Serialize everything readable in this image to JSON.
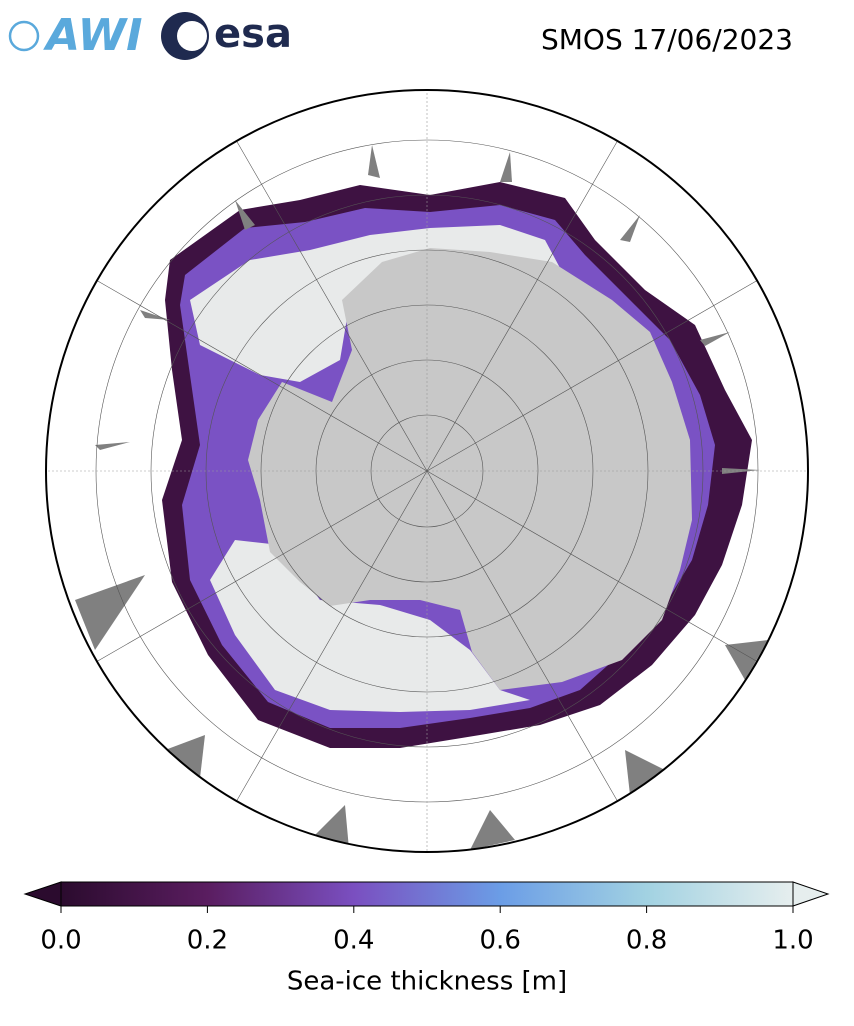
{
  "title": "SMOS 17/06/2023",
  "logos": {
    "awi": "AWI",
    "esa": "esa"
  },
  "colorbar": {
    "label": "Sea-ice thickness [m]",
    "lim": [
      0,
      1
    ],
    "ticks": [
      {
        "value": 0,
        "label": "0.0"
      },
      0.2,
      0.4,
      0.6,
      0.8,
      {
        "value": 1,
        "label": "1.0"
      }
    ],
    "colormap": [
      "#2b0b2e",
      "#5a1d60",
      "#7a4fc0",
      "#6b9de6",
      "#a2d2e2",
      "#e6eeee"
    ]
  }
}
